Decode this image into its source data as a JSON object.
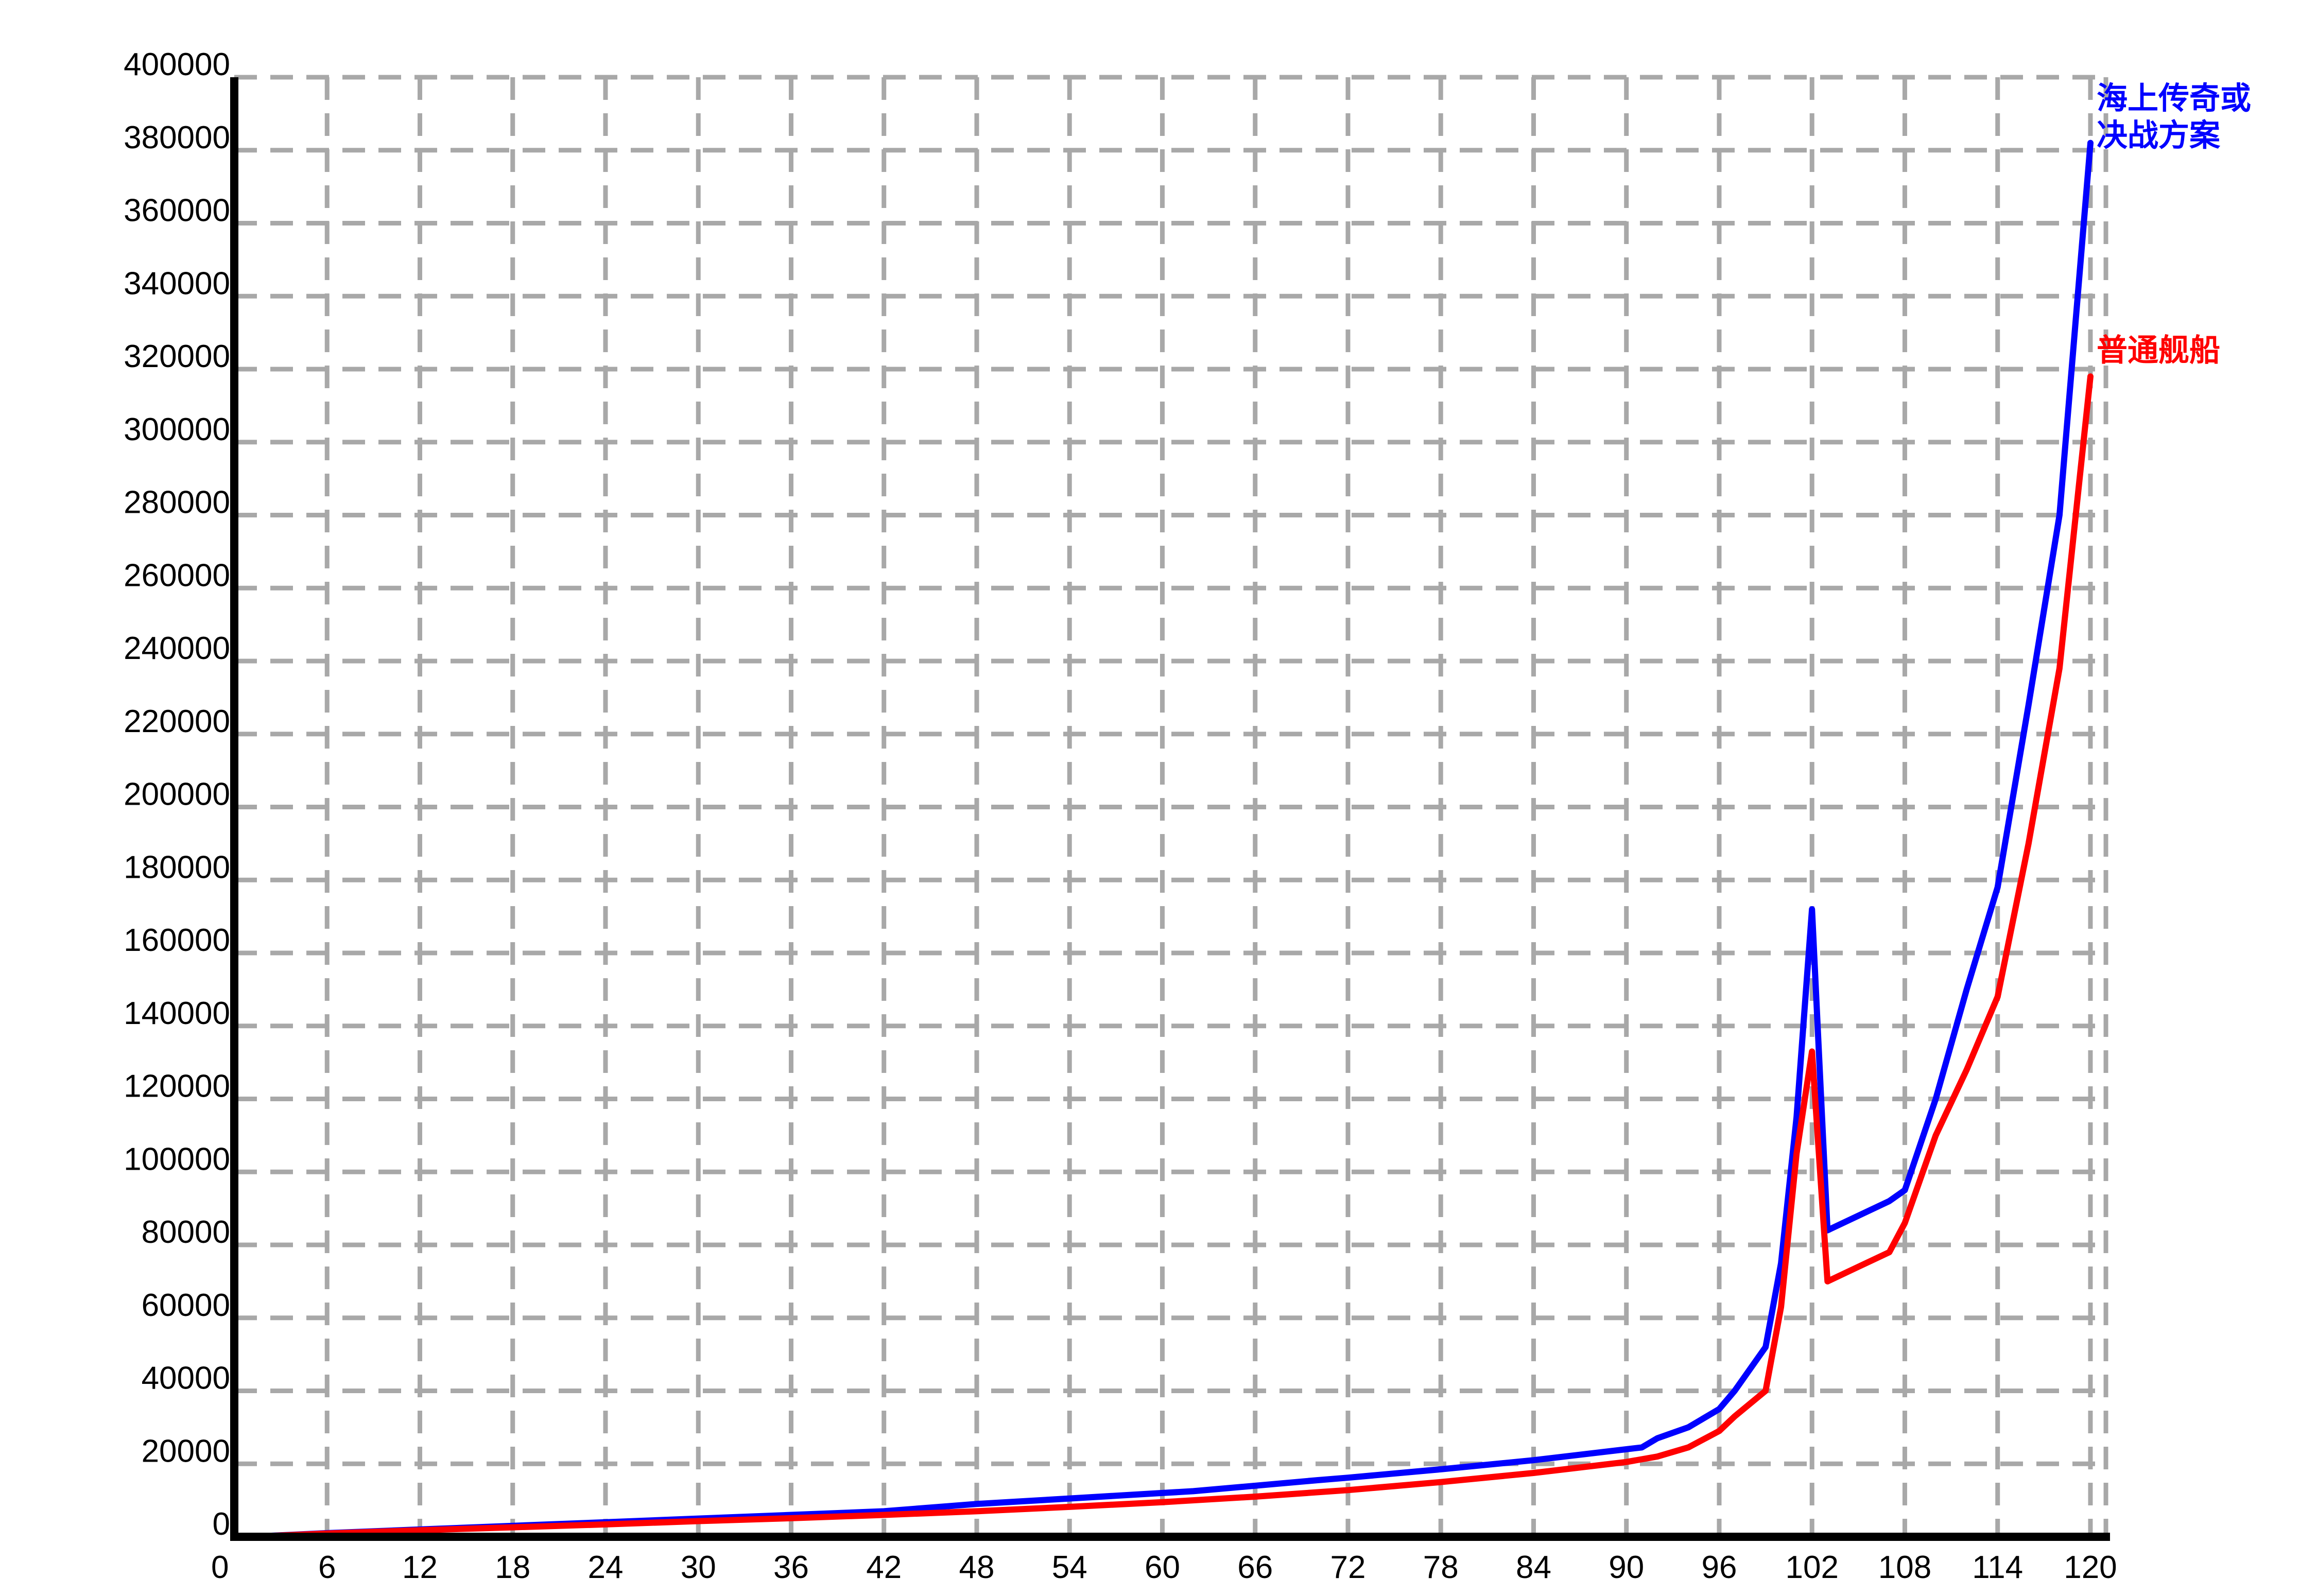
{
  "chart_data": {
    "type": "line",
    "title": "",
    "xlabel": "",
    "ylabel": "",
    "xlim": [
      0,
      121
    ],
    "ylim": [
      0,
      400000
    ],
    "x_ticks": [
      0,
      6,
      12,
      18,
      24,
      30,
      36,
      42,
      48,
      54,
      60,
      66,
      72,
      78,
      84,
      90,
      96,
      102,
      108,
      114,
      120
    ],
    "y_ticks": [
      0,
      20000,
      40000,
      60000,
      80000,
      100000,
      120000,
      140000,
      160000,
      180000,
      200000,
      220000,
      240000,
      260000,
      280000,
      300000,
      320000,
      340000,
      360000,
      380000,
      400000
    ],
    "grid": true,
    "legend": "inline-right",
    "series": [
      {
        "name": "海上传奇或\n决战方案",
        "color": "#0000ff",
        "x": [
          1,
          6,
          12,
          18,
          24,
          30,
          36,
          42,
          48,
          54,
          60,
          62,
          66,
          70,
          72,
          78,
          84,
          90,
          91,
          92,
          94,
          96,
          97,
          99,
          100,
          101,
          102,
          103,
          105,
          107,
          108,
          110,
          112,
          114,
          116,
          118,
          120
        ],
        "y": [
          0,
          1000,
          2000,
          3000,
          4000,
          5000,
          6000,
          7000,
          9000,
          10500,
          12000,
          12500,
          14000,
          15500,
          16200,
          18500,
          21000,
          24000,
          24500,
          27000,
          30000,
          35000,
          40000,
          52000,
          75000,
          115000,
          172000,
          84000,
          88000,
          92000,
          95000,
          120000,
          150000,
          178000,
          228000,
          280000,
          382000
        ]
      },
      {
        "name": "普通舰船",
        "color": "#ff0000",
        "x": [
          1,
          6,
          12,
          18,
          24,
          30,
          36,
          42,
          48,
          54,
          60,
          66,
          72,
          78,
          84,
          90,
          92,
          94,
          96,
          97,
          99,
          100,
          101,
          102,
          103,
          105,
          107,
          108,
          110,
          112,
          114,
          116,
          118,
          120
        ],
        "y": [
          0,
          900,
          1800,
          2600,
          3400,
          4300,
          5100,
          6000,
          7000,
          8200,
          9500,
          11000,
          12800,
          15000,
          17500,
          20500,
          22000,
          24500,
          29000,
          33000,
          40000,
          63000,
          105000,
          133000,
          70000,
          74000,
          78000,
          86000,
          110000,
          128000,
          148000,
          190000,
          238000,
          318000
        ]
      }
    ]
  }
}
